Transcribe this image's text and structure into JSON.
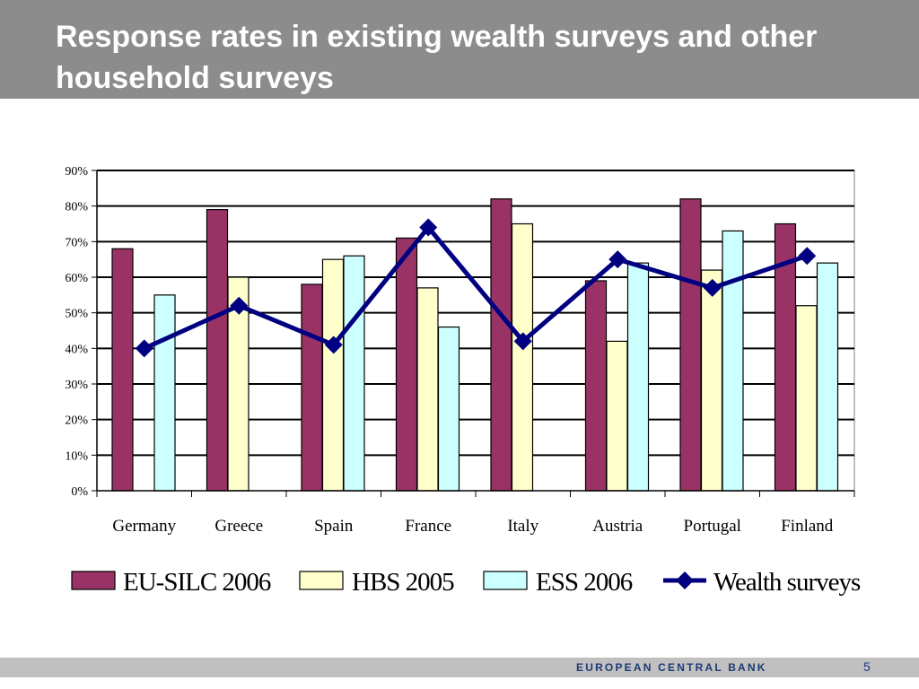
{
  "slide": {
    "title": "Response rates in existing wealth surveys and other household surveys",
    "footer_brand": "EUROPEAN CENTRAL BANK",
    "page_number": "5"
  },
  "chart_data": {
    "type": "bar",
    "categories": [
      "Germany",
      "Greece",
      "Spain",
      "France",
      "Italy",
      "Austria",
      "Portugal",
      "Finland"
    ],
    "series": [
      {
        "name": "EU-SILC 2006",
        "type": "bar",
        "color": "#993366",
        "values": [
          68,
          79,
          58,
          71,
          82,
          59,
          82,
          75
        ]
      },
      {
        "name": "HBS 2005",
        "type": "bar",
        "color": "#ffffcc",
        "values": [
          null,
          60,
          65,
          57,
          75,
          42,
          62,
          52
        ]
      },
      {
        "name": "ESS 2006",
        "type": "bar",
        "color": "#ccffff",
        "values": [
          55,
          null,
          66,
          46,
          null,
          64,
          73,
          64
        ]
      },
      {
        "name": "Wealth surveys",
        "type": "line",
        "color": "#000080",
        "values": [
          40,
          52,
          41,
          74,
          42,
          65,
          57,
          66
        ]
      }
    ],
    "y_ticks": [
      "0%",
      "10%",
      "20%",
      "30%",
      "40%",
      "50%",
      "60%",
      "70%",
      "80%",
      "90%"
    ],
    "ylim": [
      0,
      90
    ],
    "y_unit": "%",
    "grid": true,
    "legend_position": "bottom"
  }
}
